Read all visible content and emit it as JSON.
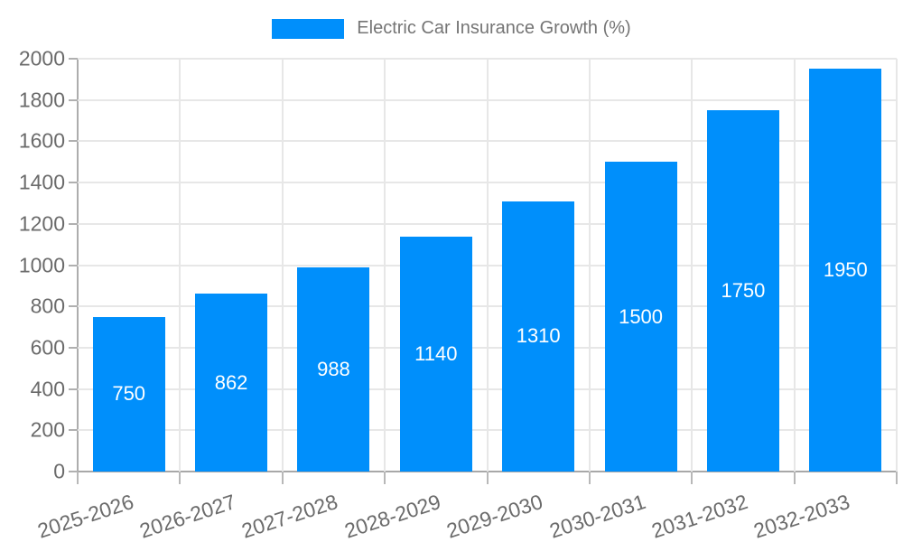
{
  "chart_data": {
    "type": "bar",
    "title": "Electric Car Insurance Growth (%)",
    "categories": [
      "2025-2026",
      "2026-2027",
      "2027-2028",
      "2028-2029",
      "2029-2030",
      "2030-2031",
      "2031-2032",
      "2032-2033"
    ],
    "series": [
      {
        "name": "Electric Car Insurance Growth (%)",
        "values": [
          750,
          862,
          988,
          1140,
          1310,
          1500,
          1750,
          1950
        ]
      }
    ],
    "bar_labels": [
      "750",
      "862",
      "988",
      "1140",
      "1310",
      "1500",
      "1750",
      "1950"
    ],
    "xlabel": "",
    "ylabel": "",
    "ylim": [
      0,
      2000
    ],
    "ytick_step": 200,
    "yticks": [
      0,
      200,
      400,
      600,
      800,
      1000,
      1200,
      1400,
      1600,
      1800,
      2000
    ],
    "grid": true,
    "legend_position": "top",
    "colors": {
      "bar": "#008FFB",
      "bar_label_text": "#ffffff",
      "axis_text": "#6b6b6b",
      "legend_text": "#757575",
      "gridline": "#e7e7e7",
      "axis_line": "#a8a8a8",
      "background": "#ffffff"
    }
  }
}
